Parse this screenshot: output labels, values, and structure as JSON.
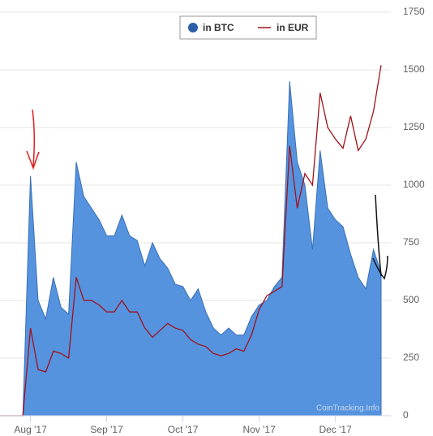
{
  "chart_data": {
    "type": "area-line",
    "categories": [
      null,
      null,
      null,
      null,
      "Aug '17",
      null,
      null,
      null,
      null,
      null,
      null,
      null,
      null,
      null,
      "Sep '17",
      null,
      null,
      null,
      null,
      null,
      null,
      null,
      null,
      null,
      "Oct '17",
      null,
      null,
      null,
      null,
      null,
      null,
      null,
      null,
      null,
      "Nov '17",
      null,
      null,
      null,
      null,
      null,
      null,
      null,
      null,
      null,
      "Dec '17",
      null,
      null,
      null,
      null,
      null,
      null
    ],
    "series": [
      {
        "name": "in BTC",
        "color": "#5593df",
        "values": [
          0,
          0,
          0,
          0,
          1040,
          500,
          420,
          600,
          470,
          440,
          1100,
          950,
          900,
          850,
          780,
          780,
          870,
          780,
          760,
          650,
          750,
          680,
          640,
          570,
          560,
          500,
          550,
          450,
          380,
          350,
          380,
          350,
          350,
          430,
          480,
          500,
          560,
          600,
          1450,
          1100,
          1000,
          720,
          1150,
          900,
          850,
          820,
          700,
          600,
          550,
          720,
          620
        ]
      },
      {
        "name": "in EUR",
        "color": "#a0121c",
        "values": [
          0,
          0,
          0,
          0,
          380,
          200,
          190,
          280,
          270,
          250,
          600,
          500,
          500,
          480,
          450,
          450,
          500,
          450,
          450,
          380,
          340,
          370,
          400,
          380,
          370,
          330,
          310,
          300,
          270,
          260,
          270,
          290,
          280,
          350,
          460,
          520,
          540,
          560,
          1170,
          900,
          1050,
          1000,
          1400,
          1250,
          1200,
          1160,
          1300,
          1150,
          1200,
          1320,
          1520
        ]
      }
    ],
    "ylim": [
      0,
      1750
    ],
    "yticks": [
      0,
      250,
      500,
      750,
      1000,
      1250,
      1500,
      1750
    ],
    "grid": true,
    "watermark": "CoinTracking.Info"
  }
}
